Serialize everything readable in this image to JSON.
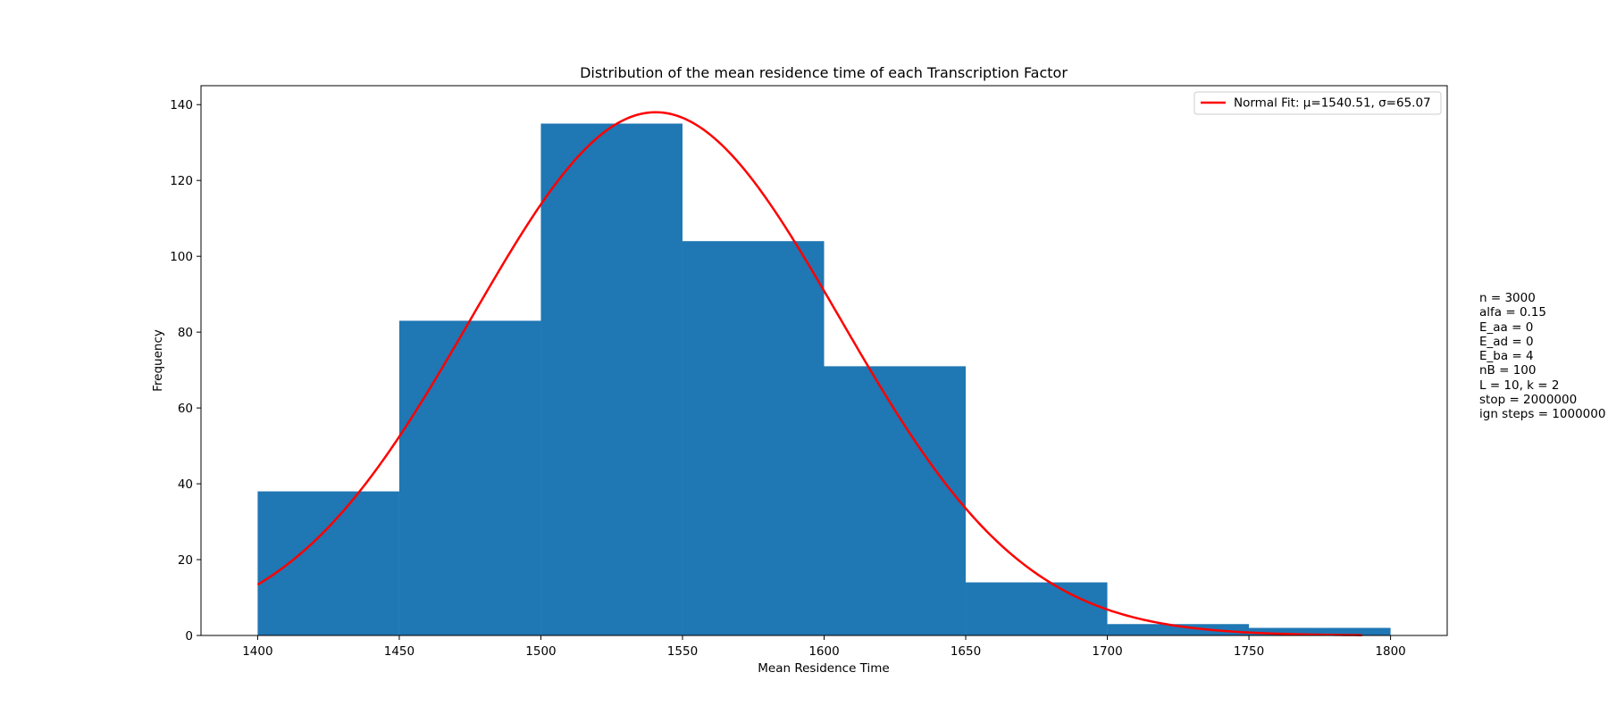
{
  "chart_data": {
    "type": "bar",
    "title": "Distribution of the mean residence time of each Transcription Factor",
    "xlabel": "Mean Residence Time",
    "ylabel": "Frequency",
    "xlim": [
      1380,
      1820
    ],
    "ylim": [
      0,
      145
    ],
    "x_ticks": [
      1400,
      1450,
      1500,
      1550,
      1600,
      1650,
      1700,
      1750,
      1800
    ],
    "y_ticks": [
      0,
      20,
      40,
      60,
      80,
      100,
      120,
      140
    ],
    "bins": [
      {
        "start": 1400,
        "end": 1450,
        "count": 38
      },
      {
        "start": 1450,
        "end": 1500,
        "count": 83
      },
      {
        "start": 1500,
        "end": 1550,
        "count": 135
      },
      {
        "start": 1550,
        "end": 1600,
        "count": 104
      },
      {
        "start": 1600,
        "end": 1650,
        "count": 71
      },
      {
        "start": 1650,
        "end": 1700,
        "count": 14
      },
      {
        "start": 1700,
        "end": 1750,
        "count": 3
      },
      {
        "start": 1750,
        "end": 1800,
        "count": 2
      }
    ],
    "bar_color": "#1f77b4",
    "fit": {
      "name": "Normal Fit: μ=1540.51, σ=65.07",
      "mu": 1540.51,
      "sigma": 65.07,
      "peak": 138,
      "x_range": [
        1400,
        1790
      ],
      "color": "#ff0000"
    },
    "legend_position": "top-right",
    "grid": false
  },
  "annotation_lines": [
    "n = 3000",
    "alfa = 0.15",
    "E_aa = 0",
    "E_ad = 0",
    "E_ba = 4",
    "nB = 100",
    "L = 10, k = 2",
    "stop = 2000000",
    "ign steps = 1000000"
  ]
}
